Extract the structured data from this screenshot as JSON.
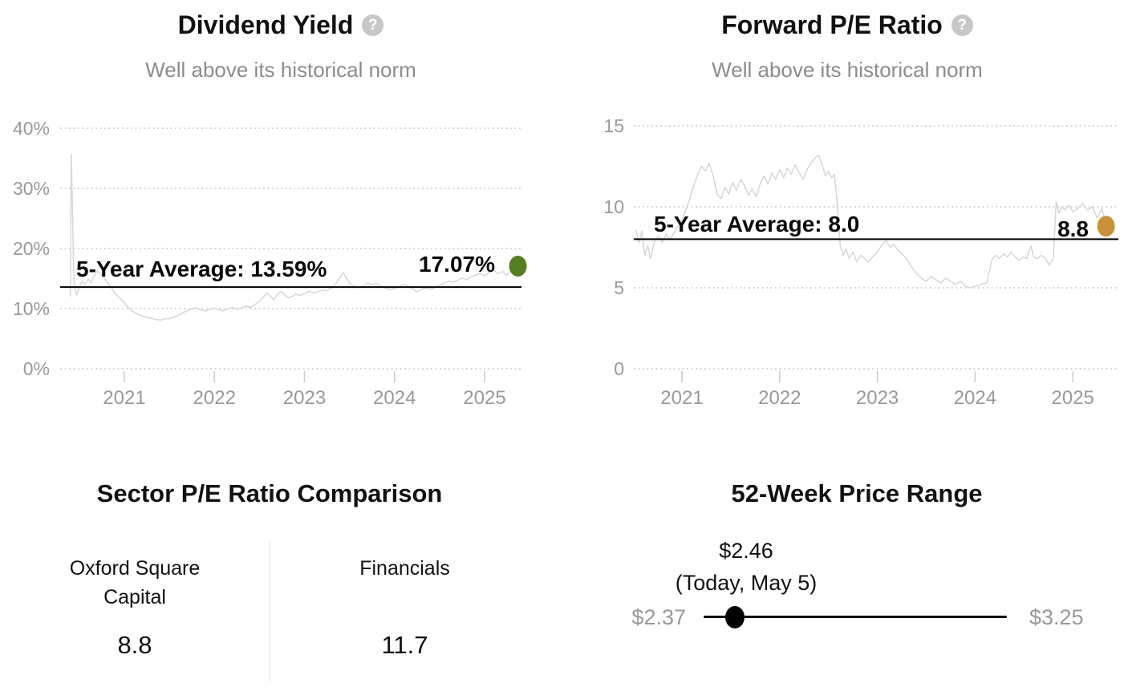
{
  "colors": {
    "title_color": "#111111",
    "subtitle": "#8c8c8c",
    "axis_label": "#999999",
    "grid_line": "#cbcbcb",
    "series_line": "#d7d7d7",
    "average_line": "#000000",
    "annotation": "#0a0a0a",
    "dividend_dot": "#567d22",
    "pe_dot": "#c9923a",
    "slider": "#000000",
    "range_label": "#999999",
    "help_icon_bg": "#c7c7c7",
    "divider": "#dddddd"
  },
  "icons": {
    "help": "?"
  },
  "chart_data": [
    {
      "type": "line",
      "title": "Dividend Yield",
      "subtitle": "Well above its historical norm",
      "average": 13.59,
      "average_label": "5-Year Average: 13.59%",
      "latest": 17.07,
      "latest_label": "17.07%",
      "dot_color": "#567d22",
      "grid": true,
      "legend": "none",
      "xlim": [
        2020.38,
        2025.42
      ],
      "ylim": [
        0,
        43
      ],
      "x_ticks": [
        2021,
        2022,
        2023,
        2024,
        2025
      ],
      "y_ticks": [
        {
          "value": 40,
          "label": "40%"
        },
        {
          "value": 30,
          "label": "30%"
        },
        {
          "value": 20,
          "label": "20%"
        },
        {
          "value": 10,
          "label": "10%"
        },
        {
          "value": 0,
          "label": "0%"
        }
      ],
      "series": [
        {
          "name": "Dividend Yield (%)",
          "points": [
            [
              2020.4,
              12.0
            ],
            [
              2020.41,
              35.7
            ],
            [
              2020.42,
              29.5
            ],
            [
              2020.44,
              14.5
            ],
            [
              2020.47,
              12.2
            ],
            [
              2020.5,
              13.6
            ],
            [
              2020.53,
              14.6
            ],
            [
              2020.56,
              14.0
            ],
            [
              2020.6,
              14.9
            ],
            [
              2020.63,
              14.3
            ],
            [
              2020.67,
              15.6
            ],
            [
              2020.7,
              16.3
            ],
            [
              2020.73,
              15.8
            ],
            [
              2020.77,
              15.2
            ],
            [
              2020.8,
              14.6
            ],
            [
              2020.83,
              14.0
            ],
            [
              2020.87,
              13.2
            ],
            [
              2020.9,
              12.5
            ],
            [
              2020.93,
              12.0
            ],
            [
              2020.97,
              11.5
            ],
            [
              2021.0,
              11.0
            ],
            [
              2021.03,
              10.4
            ],
            [
              2021.07,
              9.8
            ],
            [
              2021.1,
              9.5
            ],
            [
              2021.15,
              9.1
            ],
            [
              2021.2,
              8.8
            ],
            [
              2021.25,
              8.5
            ],
            [
              2021.3,
              8.4
            ],
            [
              2021.35,
              8.2
            ],
            [
              2021.4,
              8.1
            ],
            [
              2021.45,
              8.3
            ],
            [
              2021.5,
              8.3
            ],
            [
              2021.55,
              8.6
            ],
            [
              2021.6,
              8.9
            ],
            [
              2021.65,
              9.3
            ],
            [
              2021.7,
              9.7
            ],
            [
              2021.75,
              10.0
            ],
            [
              2021.8,
              10.1
            ],
            [
              2021.85,
              9.8
            ],
            [
              2021.9,
              9.6
            ],
            [
              2021.95,
              9.9
            ],
            [
              2022.0,
              10.1
            ],
            [
              2022.05,
              9.8
            ],
            [
              2022.1,
              9.6
            ],
            [
              2022.15,
              10.0
            ],
            [
              2022.2,
              10.2
            ],
            [
              2022.25,
              9.9
            ],
            [
              2022.3,
              10.1
            ],
            [
              2022.35,
              10.4
            ],
            [
              2022.4,
              10.2
            ],
            [
              2022.45,
              10.7
            ],
            [
              2022.5,
              11.2
            ],
            [
              2022.55,
              12.0
            ],
            [
              2022.58,
              12.6
            ],
            [
              2022.62,
              12.1
            ],
            [
              2022.66,
              11.5
            ],
            [
              2022.7,
              12.4
            ],
            [
              2022.74,
              12.9
            ],
            [
              2022.78,
              12.3
            ],
            [
              2022.82,
              11.8
            ],
            [
              2022.86,
              12.0
            ],
            [
              2022.9,
              12.4
            ],
            [
              2022.95,
              12.2
            ],
            [
              2023.0,
              12.5
            ],
            [
              2023.05,
              12.9
            ],
            [
              2023.1,
              12.6
            ],
            [
              2023.15,
              12.8
            ],
            [
              2023.2,
              13.1
            ],
            [
              2023.25,
              13.0
            ],
            [
              2023.3,
              13.4
            ],
            [
              2023.35,
              14.2
            ],
            [
              2023.4,
              15.3
            ],
            [
              2023.43,
              16.0
            ],
            [
              2023.46,
              15.2
            ],
            [
              2023.5,
              14.3
            ],
            [
              2023.55,
              13.7
            ],
            [
              2023.6,
              13.5
            ],
            [
              2023.65,
              13.8
            ],
            [
              2023.7,
              14.3
            ],
            [
              2023.75,
              14.0
            ],
            [
              2023.8,
              14.2
            ],
            [
              2023.85,
              13.8
            ],
            [
              2023.9,
              13.4
            ],
            [
              2023.95,
              13.2
            ],
            [
              2024.0,
              13.3
            ],
            [
              2024.05,
              13.7
            ],
            [
              2024.1,
              14.0
            ],
            [
              2024.15,
              13.8
            ],
            [
              2024.2,
              13.3
            ],
            [
              2024.25,
              12.8
            ],
            [
              2024.3,
              13.2
            ],
            [
              2024.35,
              13.4
            ],
            [
              2024.4,
              13.2
            ],
            [
              2024.45,
              13.5
            ],
            [
              2024.5,
              13.9
            ],
            [
              2024.55,
              14.2
            ],
            [
              2024.6,
              14.6
            ],
            [
              2024.65,
              14.4
            ],
            [
              2024.7,
              14.7
            ],
            [
              2024.75,
              15.1
            ],
            [
              2024.8,
              14.8
            ],
            [
              2024.85,
              15.3
            ],
            [
              2024.9,
              15.6
            ],
            [
              2024.95,
              15.9
            ],
            [
              2025.0,
              15.4
            ],
            [
              2025.05,
              16.0
            ],
            [
              2025.1,
              16.4
            ],
            [
              2025.15,
              15.8
            ],
            [
              2025.2,
              16.2
            ],
            [
              2025.24,
              15.5
            ],
            [
              2025.28,
              16.1
            ],
            [
              2025.32,
              16.7
            ],
            [
              2025.37,
              17.07
            ]
          ]
        }
      ]
    },
    {
      "type": "line",
      "title": "Forward P/E Ratio",
      "subtitle": "Well above its historical norm",
      "average": 8.0,
      "average_label": "5-Year Average: 8.0",
      "latest": 8.8,
      "latest_label": "8.8",
      "dot_color": "#c9923a",
      "grid": true,
      "legend": "none",
      "xlim": [
        2020.53,
        2025.4
      ],
      "ylim": [
        0,
        16
      ],
      "x_ticks": [
        2021,
        2022,
        2023,
        2024,
        2025
      ],
      "y_ticks": [
        {
          "value": 15,
          "label": "15"
        },
        {
          "value": 10,
          "label": "10"
        },
        {
          "value": 5,
          "label": "5"
        },
        {
          "value": 0,
          "label": "0"
        }
      ],
      "series": [
        {
          "name": "Forward P/E Ratio",
          "points": [
            [
              2020.53,
              8.6
            ],
            [
              2020.56,
              7.8
            ],
            [
              2020.59,
              8.5
            ],
            [
              2020.62,
              7.0
            ],
            [
              2020.65,
              7.6
            ],
            [
              2020.68,
              6.8
            ],
            [
              2020.72,
              7.9
            ],
            [
              2020.76,
              8.2
            ],
            [
              2020.8,
              7.8
            ],
            [
              2020.84,
              8.3
            ],
            [
              2020.88,
              8.0
            ],
            [
              2020.92,
              8.4
            ],
            [
              2020.96,
              8.8
            ],
            [
              2021.0,
              9.2
            ],
            [
              2021.04,
              9.8
            ],
            [
              2021.08,
              10.5
            ],
            [
              2021.12,
              11.3
            ],
            [
              2021.16,
              12.0
            ],
            [
              2021.2,
              12.5
            ],
            [
              2021.24,
              12.2
            ],
            [
              2021.28,
              12.7
            ],
            [
              2021.32,
              11.9
            ],
            [
              2021.36,
              10.8
            ],
            [
              2021.4,
              10.5
            ],
            [
              2021.44,
              11.2
            ],
            [
              2021.48,
              10.8
            ],
            [
              2021.52,
              11.5
            ],
            [
              2021.56,
              11.0
            ],
            [
              2021.6,
              11.7
            ],
            [
              2021.64,
              11.3
            ],
            [
              2021.68,
              10.7
            ],
            [
              2021.72,
              11.1
            ],
            [
              2021.76,
              10.6
            ],
            [
              2021.8,
              11.4
            ],
            [
              2021.84,
              11.9
            ],
            [
              2021.88,
              11.4
            ],
            [
              2021.92,
              12.1
            ],
            [
              2021.96,
              11.7
            ],
            [
              2022.0,
              12.3
            ],
            [
              2022.04,
              11.8
            ],
            [
              2022.08,
              12.4
            ],
            [
              2022.12,
              12.0
            ],
            [
              2022.16,
              12.6
            ],
            [
              2022.2,
              12.1
            ],
            [
              2022.24,
              11.7
            ],
            [
              2022.28,
              12.3
            ],
            [
              2022.32,
              12.7
            ],
            [
              2022.36,
              13.0
            ],
            [
              2022.4,
              13.2
            ],
            [
              2022.44,
              12.5
            ],
            [
              2022.47,
              11.9
            ],
            [
              2022.5,
              12.2
            ],
            [
              2022.53,
              11.8
            ],
            [
              2022.56,
              12.0
            ],
            [
              2022.59,
              10.2
            ],
            [
              2022.62,
              7.6
            ],
            [
              2022.65,
              7.0
            ],
            [
              2022.68,
              7.4
            ],
            [
              2022.71,
              6.8
            ],
            [
              2022.75,
              7.2
            ],
            [
              2022.79,
              6.6
            ],
            [
              2022.83,
              7.0
            ],
            [
              2022.87,
              6.8
            ],
            [
              2022.91,
              6.6
            ],
            [
              2022.95,
              6.9
            ],
            [
              2023.0,
              7.2
            ],
            [
              2023.05,
              7.7
            ],
            [
              2023.09,
              7.9
            ],
            [
              2023.13,
              7.5
            ],
            [
              2023.17,
              7.7
            ],
            [
              2023.21,
              7.3
            ],
            [
              2023.25,
              7.1
            ],
            [
              2023.3,
              6.8
            ],
            [
              2023.35,
              6.3
            ],
            [
              2023.4,
              5.9
            ],
            [
              2023.45,
              5.6
            ],
            [
              2023.5,
              5.4
            ],
            [
              2023.55,
              5.7
            ],
            [
              2023.6,
              5.5
            ],
            [
              2023.65,
              5.3
            ],
            [
              2023.7,
              5.6
            ],
            [
              2023.75,
              5.4
            ],
            [
              2023.8,
              5.2
            ],
            [
              2023.85,
              5.4
            ],
            [
              2023.9,
              5.1
            ],
            [
              2023.95,
              5.0
            ],
            [
              2024.0,
              5.1
            ],
            [
              2024.06,
              5.2
            ],
            [
              2024.12,
              5.3
            ],
            [
              2024.17,
              6.7
            ],
            [
              2024.21,
              7.0
            ],
            [
              2024.25,
              6.8
            ],
            [
              2024.29,
              7.1
            ],
            [
              2024.33,
              6.9
            ],
            [
              2024.37,
              7.2
            ],
            [
              2024.41,
              6.9
            ],
            [
              2024.45,
              6.7
            ],
            [
              2024.49,
              6.9
            ],
            [
              2024.53,
              6.8
            ],
            [
              2024.57,
              7.6
            ],
            [
              2024.6,
              6.9
            ],
            [
              2024.64,
              6.8
            ],
            [
              2024.68,
              7.0
            ],
            [
              2024.72,
              6.8
            ],
            [
              2024.76,
              6.4
            ],
            [
              2024.8,
              6.8
            ],
            [
              2024.83,
              10.3
            ],
            [
              2024.86,
              9.6
            ],
            [
              2024.89,
              10.0
            ],
            [
              2024.92,
              9.8
            ],
            [
              2024.96,
              10.1
            ],
            [
              2025.0,
              9.7
            ],
            [
              2025.05,
              9.9
            ],
            [
              2025.1,
              10.2
            ],
            [
              2025.15,
              9.8
            ],
            [
              2025.2,
              10.0
            ],
            [
              2025.25,
              9.3
            ],
            [
              2025.3,
              9.9
            ],
            [
              2025.34,
              8.8
            ]
          ]
        }
      ]
    }
  ],
  "sector_comparison": {
    "title": "Sector P/E Ratio Comparison",
    "columns": [
      {
        "label": "Oxford Square Capital",
        "value": "8.8"
      },
      {
        "label": "Financials",
        "value": "11.7"
      }
    ]
  },
  "price_range": {
    "title": "52-Week Price Range",
    "current_label": "$2.46",
    "current_note": "(Today, May 5)",
    "low_label": "$2.37",
    "high_label": "$3.25",
    "low": 2.37,
    "high": 3.25,
    "current": 2.46
  }
}
